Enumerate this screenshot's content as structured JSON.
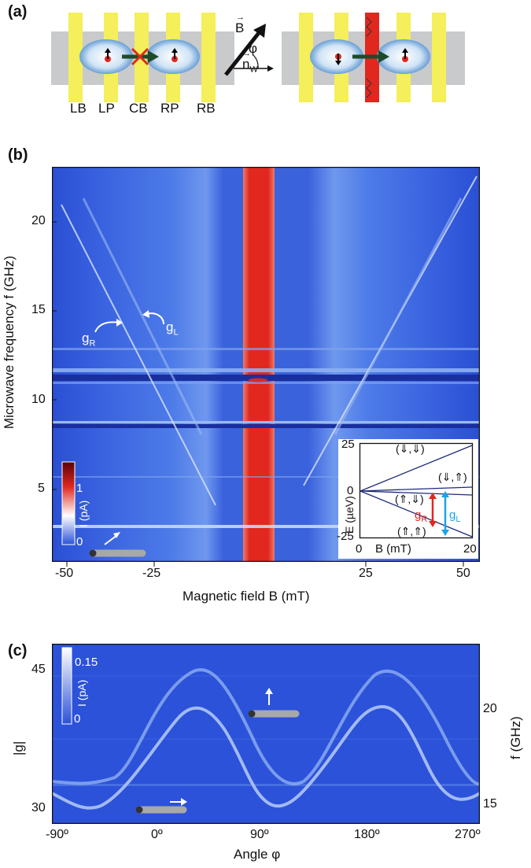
{
  "panel_a": {
    "label": "(a)",
    "gates": [
      "LB",
      "LP",
      "CB",
      "RP",
      "RB"
    ],
    "vector_B": "B",
    "angle": "φ",
    "vector_n": "n",
    "n_subscript": "W"
  },
  "panel_b": {
    "label": "(b)",
    "ylabel": "Microwave frequency f (GHz)",
    "xlabel": "Magnetic field B (mT)",
    "xticks": [
      "-50",
      "-25",
      "25",
      "50"
    ],
    "yticks": [
      "5",
      "10",
      "15",
      "20"
    ],
    "gR_label": "g",
    "gR_sub": "R",
    "gL_label": "g",
    "gL_sub": "L",
    "colorbar": {
      "label": "I (pA)",
      "ticks": [
        "0",
        "1"
      ]
    },
    "inset": {
      "ylabel": "E (µeV)",
      "xlabel": "B (mT)",
      "yticks": [
        "25",
        "0",
        "-25"
      ],
      "xticks": [
        "0",
        "20"
      ],
      "states": [
        "(⇓,⇓)",
        "(⇓,⇑)",
        "(⇑,⇓)",
        "(⇑,⇑)"
      ],
      "gR": "g",
      "gR_sub": "R",
      "gL": "g",
      "gL_sub": "L"
    }
  },
  "panel_c": {
    "label": "(c)",
    "xlabel": "Angle φ",
    "ylabel_left": "|g|",
    "ylabel_right": "f (GHz)",
    "xticks": [
      "-90º",
      "0º",
      "90º",
      "180º",
      "270º"
    ],
    "yticks_left": [
      "30",
      "45"
    ],
    "yticks_right": [
      "15",
      "20"
    ],
    "colorbar": {
      "label": "I (pA)",
      "ticks": [
        "0",
        "0.15"
      ]
    }
  },
  "colors": {
    "map_blue": "#2b52d9",
    "band_red": "#e0281e",
    "gate_yellow": "#f4ef5a",
    "gR_red": "#e0281e",
    "gL_cyan": "#1aa3e6"
  }
}
